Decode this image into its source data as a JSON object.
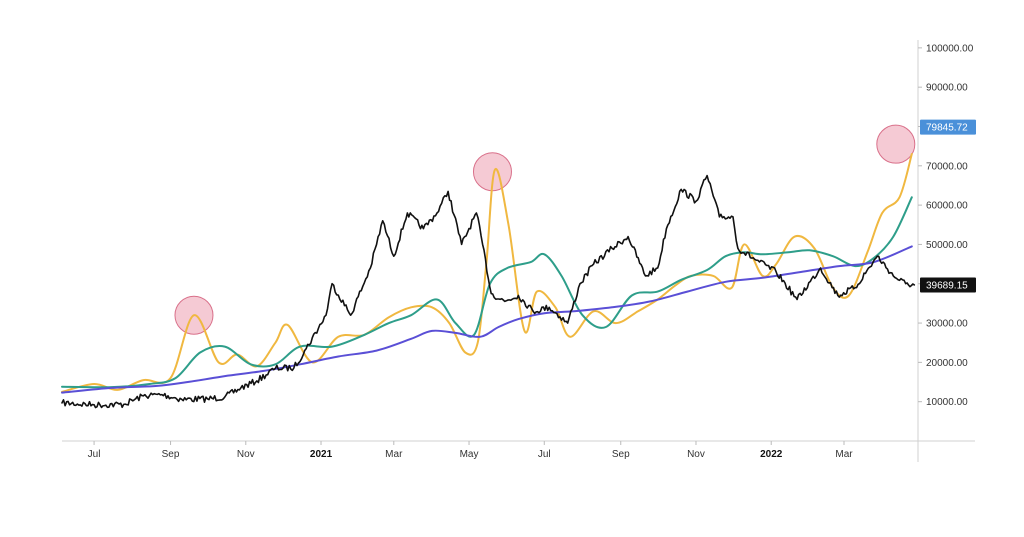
{
  "chart_data": {
    "type": "line",
    "title": "",
    "xlabel": "",
    "ylabel": "",
    "x_range": [
      "2020-06-05",
      "2022-04-30"
    ],
    "ylim": [
      0,
      102000
    ],
    "grid": false,
    "legend": "none",
    "y_ticks": [
      {
        "value": 10000,
        "label": "10000.00"
      },
      {
        "value": 20000,
        "label": "20000.00"
      },
      {
        "value": 30000,
        "label": "30000.00"
      },
      {
        "value": 40000,
        "label": "40000.00"
      },
      {
        "value": 50000,
        "label": "50000.00"
      },
      {
        "value": 60000,
        "label": "60000.00"
      },
      {
        "value": 70000,
        "label": "70000.00"
      },
      {
        "value": 80000,
        "label": "80000.00"
      },
      {
        "value": 90000,
        "label": "90000.00"
      },
      {
        "value": 100000,
        "label": "100000.00"
      }
    ],
    "x_ticks": [
      {
        "date": "2020-07-01",
        "label": "Jul",
        "bold": false
      },
      {
        "date": "2020-09-01",
        "label": "Sep",
        "bold": false
      },
      {
        "date": "2020-11-01",
        "label": "Nov",
        "bold": false
      },
      {
        "date": "2021-01-01",
        "label": "2021",
        "bold": true
      },
      {
        "date": "2021-03-01",
        "label": "Mar",
        "bold": false
      },
      {
        "date": "2021-05-01",
        "label": "May",
        "bold": false
      },
      {
        "date": "2021-07-01",
        "label": "Jul",
        "bold": false
      },
      {
        "date": "2021-09-01",
        "label": "Sep",
        "bold": false
      },
      {
        "date": "2021-11-01",
        "label": "Nov",
        "bold": false
      },
      {
        "date": "2022-01-01",
        "label": "2022",
        "bold": true
      },
      {
        "date": "2022-03-01",
        "label": "Mar",
        "bold": false
      }
    ],
    "price_badges": [
      {
        "value": 79845.72,
        "label": "79845.72",
        "color": "#4a90d9"
      },
      {
        "value": 39689.15,
        "label": "39689.15",
        "color": "#111111"
      }
    ],
    "highlights": [
      {
        "date": "2020-09-20",
        "value": 32000,
        "color": "#f2b8c6"
      },
      {
        "date": "2021-05-20",
        "value": 68500,
        "color": "#f2b8c6"
      },
      {
        "date": "2022-04-12",
        "value": 75500,
        "color": "#f2b8c6"
      }
    ],
    "series": [
      {
        "color": "#111111",
        "width": 1.6,
        "noise": true,
        "points": [
          [
            "2020-06-05",
            9700
          ],
          [
            "2020-07-01",
            9200
          ],
          [
            "2020-07-25",
            9300
          ],
          [
            "2020-08-10",
            11500
          ],
          [
            "2020-08-25",
            11800
          ],
          [
            "2020-09-10",
            10600
          ],
          [
            "2020-10-01",
            10700
          ],
          [
            "2020-10-15",
            11200
          ],
          [
            "2020-10-28",
            13500
          ],
          [
            "2020-11-10",
            15300
          ],
          [
            "2020-11-25",
            18500
          ],
          [
            "2020-12-10",
            18600
          ],
          [
            "2020-12-20",
            23500
          ],
          [
            "2021-01-05",
            32000
          ],
          [
            "2021-01-10",
            40000
          ],
          [
            "2021-01-25",
            32000
          ],
          [
            "2021-02-10",
            44000
          ],
          [
            "2021-02-20",
            56000
          ],
          [
            "2021-03-01",
            47000
          ],
          [
            "2021-03-12",
            58000
          ],
          [
            "2021-03-25",
            54000
          ],
          [
            "2021-04-05",
            58000
          ],
          [
            "2021-04-14",
            63500
          ],
          [
            "2021-04-25",
            50000
          ],
          [
            "2021-05-07",
            58000
          ],
          [
            "2021-05-12",
            50000
          ],
          [
            "2021-05-19",
            37500
          ],
          [
            "2021-05-30",
            35500
          ],
          [
            "2021-06-10",
            37000
          ],
          [
            "2021-06-22",
            33000
          ],
          [
            "2021-07-05",
            34000
          ],
          [
            "2021-07-20",
            30000
          ],
          [
            "2021-07-30",
            40000
          ],
          [
            "2021-08-10",
            45000
          ],
          [
            "2021-08-25",
            49000
          ],
          [
            "2021-09-07",
            52000
          ],
          [
            "2021-09-21",
            42000
          ],
          [
            "2021-10-01",
            44000
          ],
          [
            "2021-10-08",
            54000
          ],
          [
            "2021-10-20",
            64000
          ],
          [
            "2021-11-01",
            61000
          ],
          [
            "2021-11-10",
            67500
          ],
          [
            "2021-11-20",
            57000
          ],
          [
            "2021-12-01",
            57000
          ],
          [
            "2021-12-05",
            49000
          ],
          [
            "2021-12-20",
            46000
          ],
          [
            "2022-01-05",
            43000
          ],
          [
            "2022-01-22",
            36000
          ],
          [
            "2022-02-10",
            44000
          ],
          [
            "2022-02-24",
            37000
          ],
          [
            "2022-03-10",
            39000
          ],
          [
            "2022-03-28",
            47000
          ],
          [
            "2022-04-10",
            42000
          ],
          [
            "2022-04-20",
            40000
          ],
          [
            "2022-04-27",
            39700
          ]
        ]
      },
      {
        "color": "#f0b840",
        "width": 2,
        "noise": false,
        "points": [
          [
            "2020-06-05",
            12500
          ],
          [
            "2020-07-01",
            14500
          ],
          [
            "2020-07-20",
            13000
          ],
          [
            "2020-08-10",
            15500
          ],
          [
            "2020-09-01",
            16000
          ],
          [
            "2020-09-20",
            32000
          ],
          [
            "2020-10-10",
            20000
          ],
          [
            "2020-10-25",
            22000
          ],
          [
            "2020-11-10",
            19000
          ],
          [
            "2020-11-25",
            25000
          ],
          [
            "2020-12-05",
            29500
          ],
          [
            "2020-12-25",
            20000
          ],
          [
            "2021-01-15",
            26500
          ],
          [
            "2021-02-05",
            27000
          ],
          [
            "2021-02-25",
            31500
          ],
          [
            "2021-03-15",
            34000
          ],
          [
            "2021-04-01",
            34000
          ],
          [
            "2021-04-15",
            30000
          ],
          [
            "2021-04-28",
            22500
          ],
          [
            "2021-05-08",
            25000
          ],
          [
            "2021-05-15",
            45000
          ],
          [
            "2021-05-22",
            69000
          ],
          [
            "2021-06-02",
            55000
          ],
          [
            "2021-06-15",
            28000
          ],
          [
            "2021-06-25",
            38000
          ],
          [
            "2021-07-10",
            34000
          ],
          [
            "2021-07-22",
            26500
          ],
          [
            "2021-08-10",
            33000
          ],
          [
            "2021-08-28",
            30000
          ],
          [
            "2021-09-15",
            33000
          ],
          [
            "2021-10-01",
            36000
          ],
          [
            "2021-10-15",
            39500
          ],
          [
            "2021-10-28",
            42000
          ],
          [
            "2021-11-15",
            42000
          ],
          [
            "2021-11-30",
            39000
          ],
          [
            "2021-12-10",
            50000
          ],
          [
            "2021-12-25",
            42000
          ],
          [
            "2022-01-05",
            45000
          ],
          [
            "2022-01-20",
            52000
          ],
          [
            "2022-02-05",
            49000
          ],
          [
            "2022-02-20",
            39000
          ],
          [
            "2022-03-05",
            37000
          ],
          [
            "2022-03-20",
            48000
          ],
          [
            "2022-04-01",
            58000
          ],
          [
            "2022-04-15",
            62000
          ],
          [
            "2022-04-25",
            73000
          ]
        ]
      },
      {
        "color": "#2e9e8a",
        "width": 2,
        "noise": false,
        "points": [
          [
            "2020-06-05",
            13800
          ],
          [
            "2020-07-15",
            13700
          ],
          [
            "2020-08-15",
            14500
          ],
          [
            "2020-09-05",
            16000
          ],
          [
            "2020-09-25",
            22500
          ],
          [
            "2020-10-15",
            24000
          ],
          [
            "2020-11-05",
            19500
          ],
          [
            "2020-11-25",
            19500
          ],
          [
            "2020-12-15",
            24000
          ],
          [
            "2021-01-10",
            24000
          ],
          [
            "2021-02-05",
            27000
          ],
          [
            "2021-02-25",
            30000
          ],
          [
            "2021-03-15",
            32000
          ],
          [
            "2021-04-05",
            36000
          ],
          [
            "2021-04-20",
            30000
          ],
          [
            "2021-05-05",
            27000
          ],
          [
            "2021-05-18",
            40000
          ],
          [
            "2021-06-01",
            44000
          ],
          [
            "2021-06-20",
            45500
          ],
          [
            "2021-07-01",
            47500
          ],
          [
            "2021-07-15",
            42000
          ],
          [
            "2021-08-01",
            32000
          ],
          [
            "2021-08-20",
            29000
          ],
          [
            "2021-09-10",
            37000
          ],
          [
            "2021-10-01",
            38000
          ],
          [
            "2021-10-20",
            41000
          ],
          [
            "2021-11-10",
            43500
          ],
          [
            "2021-11-25",
            47000
          ],
          [
            "2021-12-10",
            48000
          ],
          [
            "2021-12-25",
            47500
          ],
          [
            "2022-01-15",
            48000
          ],
          [
            "2022-02-01",
            48500
          ],
          [
            "2022-02-20",
            47000
          ],
          [
            "2022-03-10",
            44500
          ],
          [
            "2022-03-25",
            46500
          ],
          [
            "2022-04-10",
            52000
          ],
          [
            "2022-04-25",
            62000
          ]
        ]
      },
      {
        "color": "#5a4fd6",
        "width": 2,
        "noise": false,
        "points": [
          [
            "2020-06-05",
            12300
          ],
          [
            "2020-07-15",
            13500
          ],
          [
            "2020-08-20",
            14000
          ],
          [
            "2020-09-15",
            15000
          ],
          [
            "2020-10-15",
            16500
          ],
          [
            "2020-11-15",
            17800
          ],
          [
            "2020-12-15",
            19500
          ],
          [
            "2021-01-15",
            21500
          ],
          [
            "2021-02-15",
            23000
          ],
          [
            "2021-03-15",
            26000
          ],
          [
            "2021-04-01",
            28000
          ],
          [
            "2021-04-20",
            27500
          ],
          [
            "2021-05-10",
            26500
          ],
          [
            "2021-05-25",
            29000
          ],
          [
            "2021-06-10",
            31000
          ],
          [
            "2021-07-01",
            32500
          ],
          [
            "2021-07-25",
            33000
          ],
          [
            "2021-08-25",
            34000
          ],
          [
            "2021-09-25",
            35500
          ],
          [
            "2021-10-25",
            38000
          ],
          [
            "2021-11-25",
            40500
          ],
          [
            "2021-12-25",
            41500
          ],
          [
            "2022-01-25",
            43000
          ],
          [
            "2022-02-25",
            44500
          ],
          [
            "2022-03-25",
            45500
          ],
          [
            "2022-04-25",
            49500
          ]
        ]
      }
    ]
  }
}
